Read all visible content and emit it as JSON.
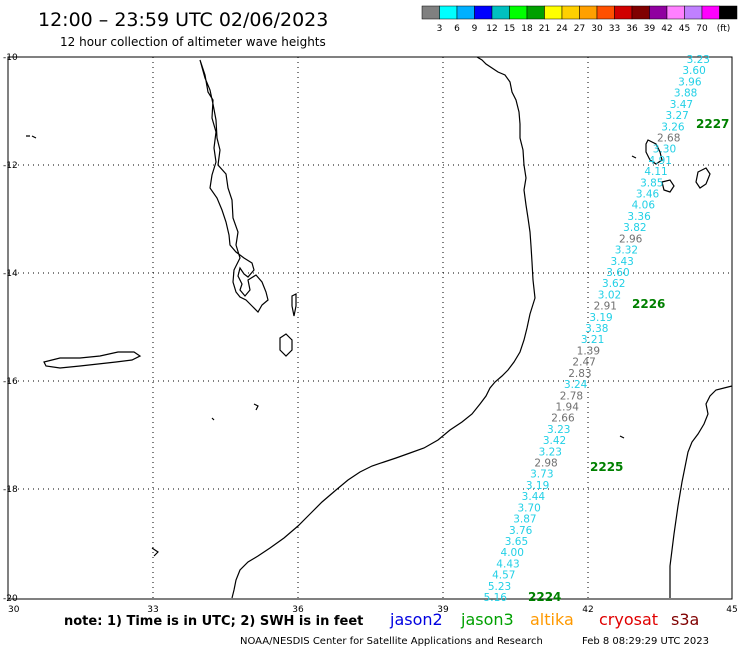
{
  "header": {
    "title": "12:00 – 23:59 UTC 02/06/2023",
    "subtitle": "12 hour collection of altimeter wave heights"
  },
  "colorbar": {
    "colors": [
      "#808080",
      "#00ffff",
      "#00b0ff",
      "#0000ff",
      "#00c0c0",
      "#00ff00",
      "#00a000",
      "#ffff00",
      "#ffd000",
      "#ffa000",
      "#ff5000",
      "#d00000",
      "#800000",
      "#9000a0",
      "#ff80ff",
      "#c080ff",
      "#ff00ff",
      "#000000"
    ],
    "labels": [
      "3",
      "6",
      "9",
      "12",
      "15",
      "18",
      "21",
      "24",
      "27",
      "30",
      "33",
      "36",
      "39",
      "42",
      "45",
      "70",
      "(ft)"
    ]
  },
  "map": {
    "x_ticks": [
      "30",
      "33",
      "36",
      "39",
      "42",
      "45"
    ],
    "y_ticks": [
      "-10",
      "-12",
      "-14",
      "-16",
      "-18",
      "-20"
    ]
  },
  "track": {
    "points": [
      {
        "v": "3.23",
        "c": "cyan"
      },
      {
        "v": "3.60",
        "c": "cyan"
      },
      {
        "v": "3.96",
        "c": "cyan"
      },
      {
        "v": "3.88",
        "c": "cyan"
      },
      {
        "v": "3.47",
        "c": "cyan"
      },
      {
        "v": "3.27",
        "c": "cyan"
      },
      {
        "v": "3.26",
        "c": "cyan"
      },
      {
        "v": "2.68",
        "c": "gray"
      },
      {
        "v": "3.30",
        "c": "cyan"
      },
      {
        "v": "4.91",
        "c": "cyan"
      },
      {
        "v": "4.11",
        "c": "cyan"
      },
      {
        "v": "3.85",
        "c": "cyan"
      },
      {
        "v": "3.46",
        "c": "cyan"
      },
      {
        "v": "4.06",
        "c": "cyan"
      },
      {
        "v": "3.36",
        "c": "cyan"
      },
      {
        "v": "3.82",
        "c": "cyan"
      },
      {
        "v": "2.96",
        "c": "gray"
      },
      {
        "v": "3.32",
        "c": "cyan"
      },
      {
        "v": "3.43",
        "c": "cyan"
      },
      {
        "v": "3.60",
        "c": "cyan"
      },
      {
        "v": "3.62",
        "c": "cyan"
      },
      {
        "v": "3.02",
        "c": "cyan"
      },
      {
        "v": "2.91",
        "c": "gray"
      },
      {
        "v": "3.19",
        "c": "cyan"
      },
      {
        "v": "3.38",
        "c": "cyan"
      },
      {
        "v": "3.21",
        "c": "cyan"
      },
      {
        "v": "1.39",
        "c": "gray"
      },
      {
        "v": "2.47",
        "c": "gray"
      },
      {
        "v": "2.83",
        "c": "gray"
      },
      {
        "v": "3.24",
        "c": "cyan"
      },
      {
        "v": "2.78",
        "c": "gray"
      },
      {
        "v": "1.94",
        "c": "gray"
      },
      {
        "v": "2.66",
        "c": "gray"
      },
      {
        "v": "3.23",
        "c": "cyan"
      },
      {
        "v": "3.42",
        "c": "cyan"
      },
      {
        "v": "3.23",
        "c": "cyan"
      },
      {
        "v": "2.98",
        "c": "gray"
      },
      {
        "v": "3.73",
        "c": "cyan"
      },
      {
        "v": "3.19",
        "c": "cyan"
      },
      {
        "v": "3.44",
        "c": "cyan"
      },
      {
        "v": "3.70",
        "c": "cyan"
      },
      {
        "v": "3.87",
        "c": "cyan"
      },
      {
        "v": "3.76",
        "c": "cyan"
      },
      {
        "v": "3.65",
        "c": "cyan"
      },
      {
        "v": "4.00",
        "c": "cyan"
      },
      {
        "v": "4.43",
        "c": "cyan"
      },
      {
        "v": "4.57",
        "c": "cyan"
      },
      {
        "v": "5.23",
        "c": "cyan"
      },
      {
        "v": "5.16",
        "c": "cyan"
      }
    ],
    "value_colors": {
      "cyan": "#22d0e6",
      "gray": "#707070"
    },
    "time_labels": [
      "2227",
      "2226",
      "2225",
      "2224"
    ],
    "time_label_color": "#008000"
  },
  "footer": {
    "note": "note:  1) Time is in UTC;  2) SWH is in feet",
    "satellites": [
      {
        "name": "jason2",
        "color": "#0000e0"
      },
      {
        "name": "jason3",
        "color": "#00a000"
      },
      {
        "name": "altika",
        "color": "#ff9900"
      },
      {
        "name": "cryosat",
        "color": "#e00000"
      },
      {
        "name": "s3a",
        "color": "#800000"
      }
    ],
    "credit": "NOAA/NESDIS Center for Satellite Applications and Research",
    "timestamp": "Feb  8 08:29:29 UTC 2023"
  }
}
